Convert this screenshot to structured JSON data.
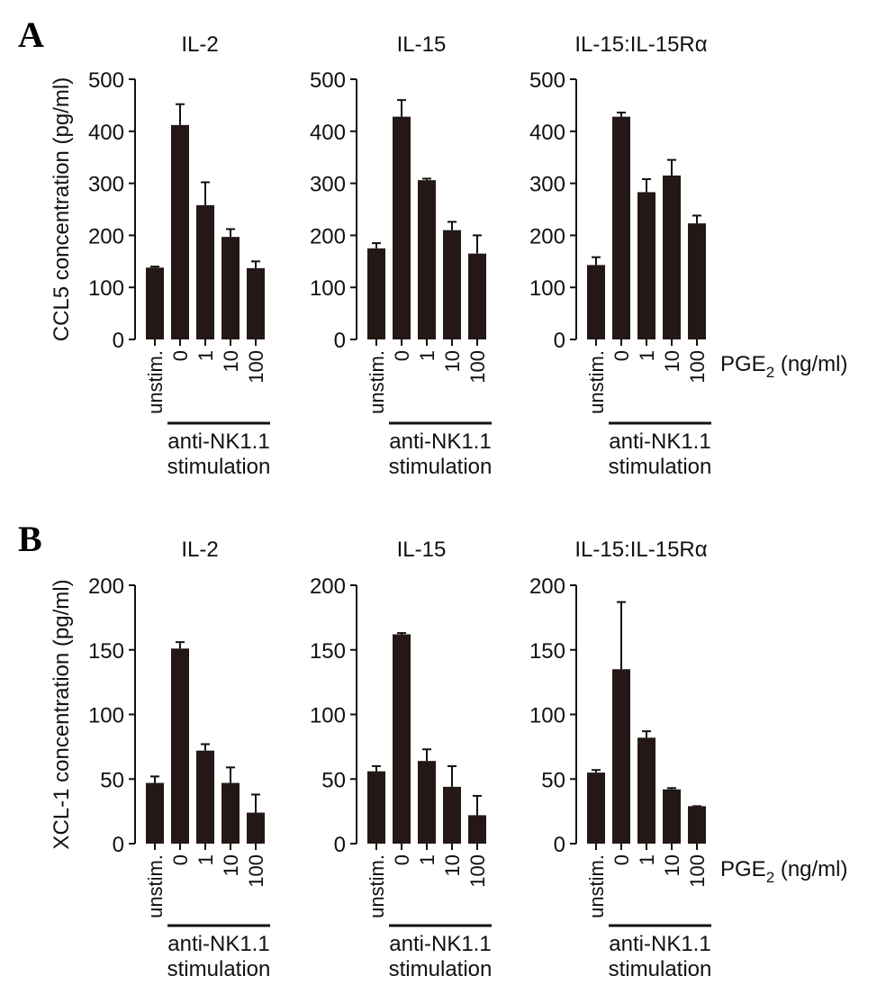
{
  "panels": [
    {
      "letter": "A",
      "ylabel": "CCL5 concentration (pg/ml)",
      "ylim": [
        0,
        500
      ],
      "yticks": [
        "0",
        "100",
        "200",
        "300",
        "400",
        "500"
      ],
      "pge_label": "PGE",
      "pge_sub": "2",
      "pge_unit": " (ng/ml)",
      "stim_line1": "anti-NK1.1",
      "stim_line2": "stimulation"
    },
    {
      "letter": "B",
      "ylabel": "XCL-1 concentration (pg/ml)",
      "ylim": [
        0,
        200
      ],
      "yticks": [
        "0",
        "50",
        "100",
        "150",
        "200"
      ],
      "pge_label": "PGE",
      "pge_sub": "2",
      "pge_unit": " (ng/ml)",
      "stim_line1": "anti-NK1.1",
      "stim_line2": "stimulation"
    }
  ],
  "chart_data": [
    {
      "type": "bar",
      "panel": "A",
      "title": "IL-2",
      "ylabel": "CCL5 concentration (pg/ml)",
      "ylim": [
        0,
        500
      ],
      "categories": [
        "unstim.",
        "0",
        "1",
        "10",
        "100"
      ],
      "values": [
        138,
        412,
        258,
        197,
        137
      ],
      "error_upper": [
        140,
        452,
        302,
        212,
        150
      ],
      "bar_color": "#231815"
    },
    {
      "type": "bar",
      "panel": "A",
      "title": "IL-15",
      "ylabel": "CCL5 concentration (pg/ml)",
      "ylim": [
        0,
        500
      ],
      "categories": [
        "unstim.",
        "0",
        "1",
        "10",
        "100"
      ],
      "values": [
        175,
        428,
        306,
        210,
        165
      ],
      "error_upper": [
        185,
        460,
        309,
        226,
        200
      ],
      "bar_color": "#231815"
    },
    {
      "type": "bar",
      "panel": "A",
      "title": "IL-15:IL-15Rα",
      "ylabel": "CCL5 concentration (pg/ml)",
      "ylim": [
        0,
        500
      ],
      "categories": [
        "unstim.",
        "0",
        "1",
        "10",
        "100"
      ],
      "values": [
        143,
        428,
        283,
        315,
        223
      ],
      "error_upper": [
        158,
        436,
        308,
        345,
        238
      ],
      "bar_color": "#231815"
    },
    {
      "type": "bar",
      "panel": "B",
      "title": "IL-2",
      "ylabel": "XCL-1 concentration (pg/ml)",
      "ylim": [
        0,
        200
      ],
      "categories": [
        "unstim.",
        "0",
        "1",
        "10",
        "100"
      ],
      "values": [
        47,
        151,
        72,
        47,
        24
      ],
      "error_upper": [
        52,
        156,
        77,
        59,
        38
      ],
      "bar_color": "#231815"
    },
    {
      "type": "bar",
      "panel": "B",
      "title": "IL-15",
      "ylabel": "XCL-1 concentration (pg/ml)",
      "ylim": [
        0,
        200
      ],
      "categories": [
        "unstim.",
        "0",
        "1",
        "10",
        "100"
      ],
      "values": [
        56,
        162,
        64,
        44,
        22
      ],
      "error_upper": [
        60,
        163,
        73,
        60,
        37
      ],
      "bar_color": "#231815"
    },
    {
      "type": "bar",
      "panel": "B",
      "title": "IL-15:IL-15Rα",
      "ylabel": "XCL-1 concentration (pg/ml)",
      "ylim": [
        0,
        200
      ],
      "categories": [
        "unstim.",
        "0",
        "1",
        "10",
        "100"
      ],
      "values": [
        55,
        135,
        82,
        42,
        29
      ],
      "error_upper": [
        57,
        187,
        87,
        43,
        29
      ],
      "bar_color": "#231815"
    }
  ]
}
